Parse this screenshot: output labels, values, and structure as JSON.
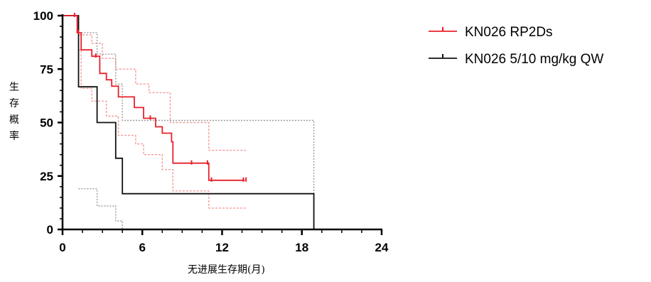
{
  "chart_data": {
    "type": "line",
    "subtype": "kaplan-meier",
    "xlabel": "无进展生存期(月)",
    "ylabel": "生存概率",
    "xlim": [
      0,
      24
    ],
    "ylim": [
      0,
      100
    ],
    "xticks": [
      0,
      6,
      12,
      18,
      24
    ],
    "yticks": [
      0,
      25,
      50,
      75,
      100
    ],
    "xtick_labels": [
      "0",
      "6",
      "12",
      "18",
      "24"
    ],
    "ytick_labels": [
      "0",
      "25",
      "50",
      "75",
      "100"
    ],
    "grid": false,
    "legend_position": "top-right",
    "series": [
      {
        "name": "KN026 RP2Ds",
        "color": "#e8202a",
        "ci_color": "#f29a9a",
        "steps": [
          [
            0,
            100
          ],
          [
            1.1,
            100
          ],
          [
            1.1,
            92
          ],
          [
            1.4,
            92
          ],
          [
            1.4,
            84
          ],
          [
            2.2,
            84
          ],
          [
            2.2,
            81
          ],
          [
            2.8,
            81
          ],
          [
            2.8,
            73
          ],
          [
            3.3,
            73
          ],
          [
            3.3,
            70
          ],
          [
            3.7,
            70
          ],
          [
            3.7,
            67
          ],
          [
            4.2,
            67
          ],
          [
            4.2,
            62
          ],
          [
            5.4,
            62
          ],
          [
            5.4,
            57
          ],
          [
            6.1,
            57
          ],
          [
            6.1,
            52
          ],
          [
            7.0,
            52
          ],
          [
            7.0,
            48
          ],
          [
            7.5,
            48
          ],
          [
            7.5,
            45
          ],
          [
            8.2,
            45
          ],
          [
            8.2,
            41
          ],
          [
            8.3,
            41
          ],
          [
            8.3,
            31
          ],
          [
            11.0,
            31
          ],
          [
            11.0,
            23
          ],
          [
            13.7,
            23
          ]
        ],
        "censored": [
          [
            0.9,
            100
          ],
          [
            1.2,
            92
          ],
          [
            2.5,
            81
          ],
          [
            6.6,
            52
          ],
          [
            9.7,
            31
          ],
          [
            10.9,
            31
          ],
          [
            11.2,
            23
          ],
          [
            13.6,
            23
          ],
          [
            13.8,
            23
          ]
        ],
        "ci_upper": [
          [
            0,
            100
          ],
          [
            1.2,
            100
          ],
          [
            1.2,
            91
          ],
          [
            2.2,
            91
          ],
          [
            2.2,
            87
          ],
          [
            3.0,
            87
          ],
          [
            3.0,
            80
          ],
          [
            4.0,
            80
          ],
          [
            4.0,
            75
          ],
          [
            5.5,
            75
          ],
          [
            5.5,
            68
          ],
          [
            6.5,
            68
          ],
          [
            6.5,
            64
          ],
          [
            8.1,
            64
          ],
          [
            8.1,
            50
          ],
          [
            11.0,
            50
          ],
          [
            11.0,
            37
          ],
          [
            13.8,
            37
          ]
        ],
        "ci_lower": [
          [
            1.2,
            84
          ],
          [
            1.4,
            84
          ],
          [
            1.4,
            66
          ],
          [
            2.2,
            66
          ],
          [
            2.2,
            60
          ],
          [
            3.3,
            60
          ],
          [
            3.3,
            53
          ],
          [
            4.2,
            53
          ],
          [
            4.2,
            44
          ],
          [
            5.5,
            44
          ],
          [
            5.5,
            40
          ],
          [
            6.1,
            40
          ],
          [
            6.1,
            35
          ],
          [
            7.5,
            35
          ],
          [
            7.5,
            28
          ],
          [
            8.3,
            28
          ],
          [
            8.3,
            18
          ],
          [
            11.0,
            18
          ],
          [
            11.0,
            10
          ],
          [
            13.8,
            10
          ]
        ]
      },
      {
        "name": "KN026 5/10 mg/kg QW",
        "color": "#111111",
        "ci_color": "#999999",
        "steps": [
          [
            0,
            100
          ],
          [
            1.2,
            100
          ],
          [
            1.2,
            66.7
          ],
          [
            2.6,
            66.7
          ],
          [
            2.6,
            50
          ],
          [
            4.0,
            50
          ],
          [
            4.0,
            33.3
          ],
          [
            4.5,
            33.3
          ],
          [
            4.5,
            16.7
          ],
          [
            18.9,
            16.7
          ],
          [
            18.9,
            0
          ]
        ],
        "censored": [],
        "ci_upper": [
          [
            1.2,
            100
          ],
          [
            1.2,
            92
          ],
          [
            2.6,
            92
          ],
          [
            2.6,
            82
          ],
          [
            4.0,
            82
          ],
          [
            4.0,
            68
          ],
          [
            4.5,
            68
          ],
          [
            4.5,
            51
          ],
          [
            18.9,
            51
          ],
          [
            18.9,
            0
          ]
        ],
        "ci_lower": [
          [
            1.2,
            19
          ],
          [
            2.6,
            19
          ],
          [
            2.6,
            11
          ],
          [
            4.0,
            11
          ],
          [
            4.0,
            4
          ],
          [
            4.5,
            4
          ],
          [
            4.5,
            0
          ]
        ]
      }
    ]
  }
}
